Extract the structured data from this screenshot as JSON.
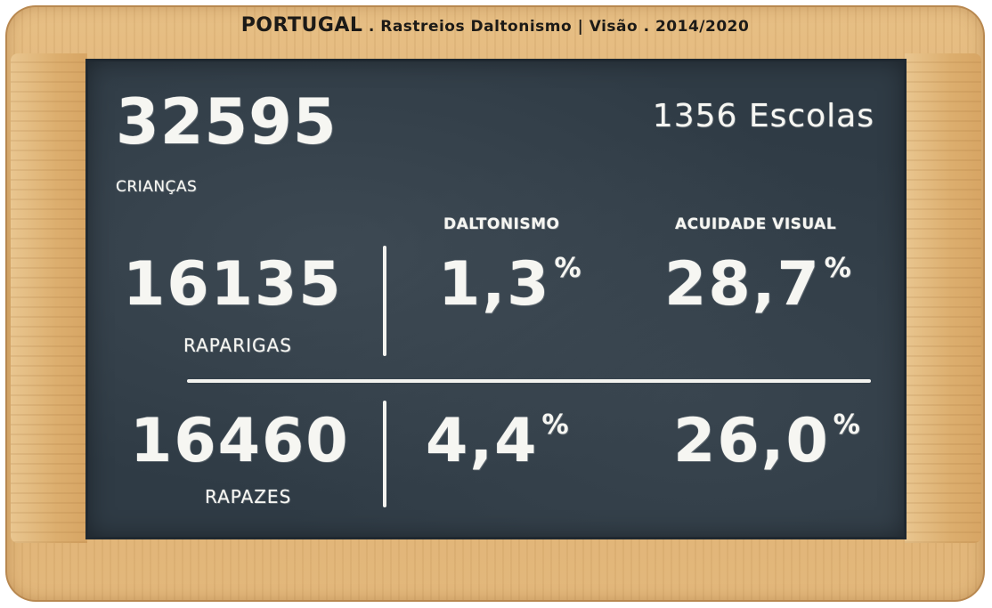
{
  "title": {
    "country": "PORTUGAL",
    "subtitle": " . Rastreios Daltonismo | Visão . 2014/2020"
  },
  "summary": {
    "children_count": "32595",
    "children_label": "CRIANÇAS",
    "schools": "1356 Escolas"
  },
  "columns": {
    "colorblindness": "DALTONISMO",
    "visual_acuity": "ACUIDADE VISUAL"
  },
  "rows": [
    {
      "count": "16135",
      "label": "RAPARIGAS",
      "colorblindness": "1,3",
      "visual_acuity": "28,7",
      "unit": "%"
    },
    {
      "count": "16460",
      "label": "RAPAZES",
      "colorblindness": "4,4",
      "visual_acuity": "26,0",
      "unit": "%"
    }
  ]
}
